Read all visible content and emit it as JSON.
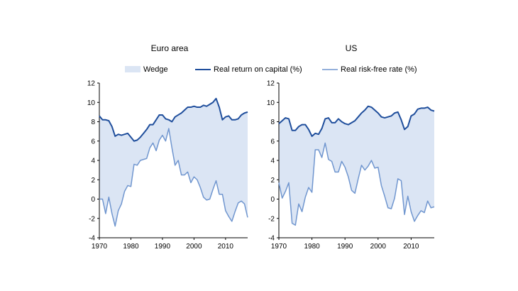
{
  "legend": {
    "wedge_label": "Wedge",
    "return_label": "Real return on capital (%)",
    "riskfree_label": "Real risk-free rate (%)"
  },
  "colors": {
    "wedge": "#dbe5f4",
    "return_line": "#1f4e9c",
    "riskfree_line": "#7096cf"
  },
  "chart_data": [
    {
      "type": "area",
      "title": "Euro area",
      "xlabel": "",
      "ylabel": "",
      "xlim": [
        1970,
        2017
      ],
      "ylim": [
        -4,
        12
      ],
      "x_ticks": [
        1970,
        1980,
        1990,
        2000,
        2010
      ],
      "y_ticks": [
        -4,
        -2,
        0,
        2,
        4,
        6,
        8,
        10,
        12
      ],
      "legend_position": "top",
      "x": [
        1970,
        1971,
        1972,
        1973,
        1974,
        1975,
        1976,
        1977,
        1978,
        1979,
        1980,
        1981,
        1982,
        1983,
        1984,
        1985,
        1986,
        1987,
        1988,
        1989,
        1990,
        1991,
        1992,
        1993,
        1994,
        1995,
        1996,
        1997,
        1998,
        1999,
        2000,
        2001,
        2002,
        2003,
        2004,
        2005,
        2006,
        2007,
        2008,
        2009,
        2010,
        2011,
        2012,
        2013,
        2014,
        2015,
        2016,
        2017
      ],
      "series": [
        {
          "name": "Real return on capital (%)",
          "values": [
            8.6,
            8.2,
            8.2,
            8.1,
            7.5,
            6.5,
            6.7,
            6.6,
            6.7,
            6.8,
            6.4,
            6.0,
            6.1,
            6.4,
            6.8,
            7.2,
            7.7,
            7.7,
            8.2,
            8.7,
            8.7,
            8.3,
            8.2,
            8.0,
            8.5,
            8.7,
            8.9,
            9.2,
            9.5,
            9.5,
            9.6,
            9.5,
            9.5,
            9.7,
            9.6,
            9.8,
            10.0,
            10.4,
            9.5,
            8.2,
            8.5,
            8.6,
            8.2,
            8.2,
            8.3,
            8.7,
            8.9,
            9.0
          ]
        },
        {
          "name": "Real risk-free rate (%)",
          "values": [
            0.0,
            0.0,
            -1.5,
            0.2,
            -1.5,
            -2.8,
            -1.2,
            -0.5,
            0.8,
            1.4,
            1.3,
            3.6,
            3.5,
            4.0,
            4.1,
            4.2,
            5.3,
            5.8,
            5.0,
            6.1,
            6.6,
            6.0,
            7.3,
            5.3,
            3.5,
            4.0,
            2.5,
            2.5,
            2.8,
            1.7,
            2.3,
            2.0,
            1.2,
            0.2,
            -0.1,
            0.0,
            1.0,
            1.9,
            0.5,
            0.5,
            -1.2,
            -1.8,
            -2.3,
            -1.3,
            -0.4,
            -0.2,
            -0.5,
            -1.9
          ]
        }
      ]
    },
    {
      "type": "area",
      "title": "US",
      "xlabel": "",
      "ylabel": "",
      "xlim": [
        1970,
        2017
      ],
      "ylim": [
        -4,
        12
      ],
      "x_ticks": [
        1970,
        1980,
        1990,
        2000,
        2010
      ],
      "y_ticks": [
        -4,
        -2,
        0,
        2,
        4,
        6,
        8,
        10,
        12
      ],
      "legend_position": "top",
      "x": [
        1970,
        1971,
        1972,
        1973,
        1974,
        1975,
        1976,
        1977,
        1978,
        1979,
        1980,
        1981,
        1982,
        1983,
        1984,
        1985,
        1986,
        1987,
        1988,
        1989,
        1990,
        1991,
        1992,
        1993,
        1994,
        1995,
        1996,
        1997,
        1998,
        1999,
        2000,
        2001,
        2002,
        2003,
        2004,
        2005,
        2006,
        2007,
        2008,
        2009,
        2010,
        2011,
        2012,
        2013,
        2014,
        2015,
        2016,
        2017
      ],
      "series": [
        {
          "name": "Real return on capital (%)",
          "values": [
            7.8,
            8.1,
            8.4,
            8.3,
            7.1,
            7.1,
            7.5,
            7.7,
            7.7,
            7.2,
            6.5,
            6.8,
            6.7,
            7.3,
            8.3,
            8.4,
            7.9,
            7.9,
            8.3,
            8.0,
            7.8,
            7.7,
            7.9,
            8.1,
            8.5,
            8.9,
            9.2,
            9.6,
            9.5,
            9.2,
            8.9,
            8.5,
            8.4,
            8.5,
            8.6,
            8.9,
            9.0,
            8.2,
            7.2,
            7.5,
            8.6,
            8.8,
            9.3,
            9.4,
            9.4,
            9.5,
            9.2,
            9.1
          ]
        },
        {
          "name": "Real risk-free rate (%)",
          "values": [
            1.7,
            0.1,
            0.8,
            1.7,
            -2.5,
            -2.7,
            -0.5,
            -1.3,
            0.2,
            1.2,
            0.7,
            5.1,
            5.1,
            4.3,
            5.8,
            4.1,
            3.9,
            2.8,
            2.8,
            3.9,
            3.3,
            2.3,
            0.9,
            0.6,
            2.1,
            3.5,
            3.0,
            3.4,
            4.0,
            3.2,
            3.3,
            1.4,
            0.3,
            -0.9,
            -1.0,
            0.1,
            2.1,
            1.9,
            -1.6,
            0.3,
            -1.3,
            -2.3,
            -1.7,
            -1.2,
            -1.4,
            -0.2,
            -0.9,
            -0.8
          ]
        }
      ]
    }
  ]
}
